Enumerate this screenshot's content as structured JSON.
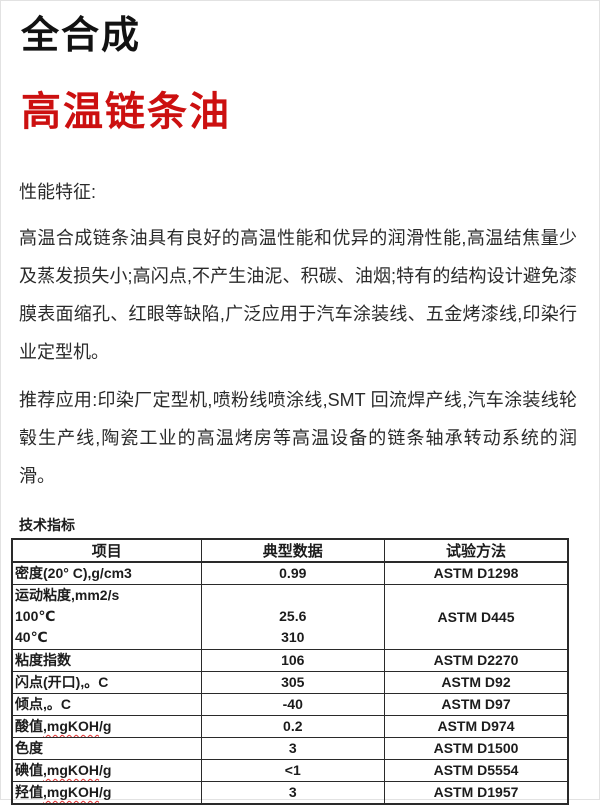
{
  "page": {
    "title_line1": "全合成",
    "title_line2": "高温链条油",
    "title_color": "#cc1010"
  },
  "content": {
    "features_heading": "性能特征:",
    "features_paragraph": "高温合成链条油具有良好的高温性能和优异的润滑性能,高温结焦量少及蒸发损失小;高闪点,不产生油泥、积碳、油烟;特有的结构设计避免漆膜表面缩孔、红眼等缺陷,广泛应用于汽车涂装线、五金烤漆线,印染行业定型机。",
    "applications_paragraph": "推荐应用:印染厂定型机,喷粉线喷涂线,SMT 回流焊产线,汽车涂装线轮毂生产线,陶瓷工业的高温烤房等高温设备的链条轴承转动系统的润滑。",
    "table_heading": "技术指标"
  },
  "table": {
    "headers": [
      "项目",
      "典型数据",
      "试验方法"
    ],
    "rows": [
      {
        "item_pre": "密度(20° C),g/cm3",
        "value": "0.99",
        "method": "ASTM D1298"
      },
      {
        "item_lines": [
          "运动粘度,mm2/s",
          "100℃",
          "40℃"
        ],
        "value_lines": [
          "",
          "25.6",
          "310"
        ],
        "method": "ASTM D445"
      },
      {
        "item_pre": "粘度指数",
        "value": "106",
        "method": "ASTM D2270"
      },
      {
        "item_pre": "闪点(开口),。C",
        "value": "305",
        "method": "ASTM D92"
      },
      {
        "item_pre": "倾点,。C",
        "value": "-40",
        "method": "ASTM D97"
      },
      {
        "item_pre": "酸值",
        "item_wavy": ",mgKOH",
        "item_post": "/g",
        "value": "0.2",
        "method": "ASTM D974"
      },
      {
        "item_pre": "色度",
        "value": "3",
        "method": "ASTM D1500"
      },
      {
        "item_pre": "碘值",
        "item_wavy": ",mgKOH",
        "item_post": "/g",
        "value": "<1",
        "method": "ASTM D5554"
      },
      {
        "item_pre": "羟值",
        "item_wavy": ",mgKOH",
        "item_post": "/g",
        "value": "3",
        "method": "ASTM D1957"
      }
    ]
  }
}
